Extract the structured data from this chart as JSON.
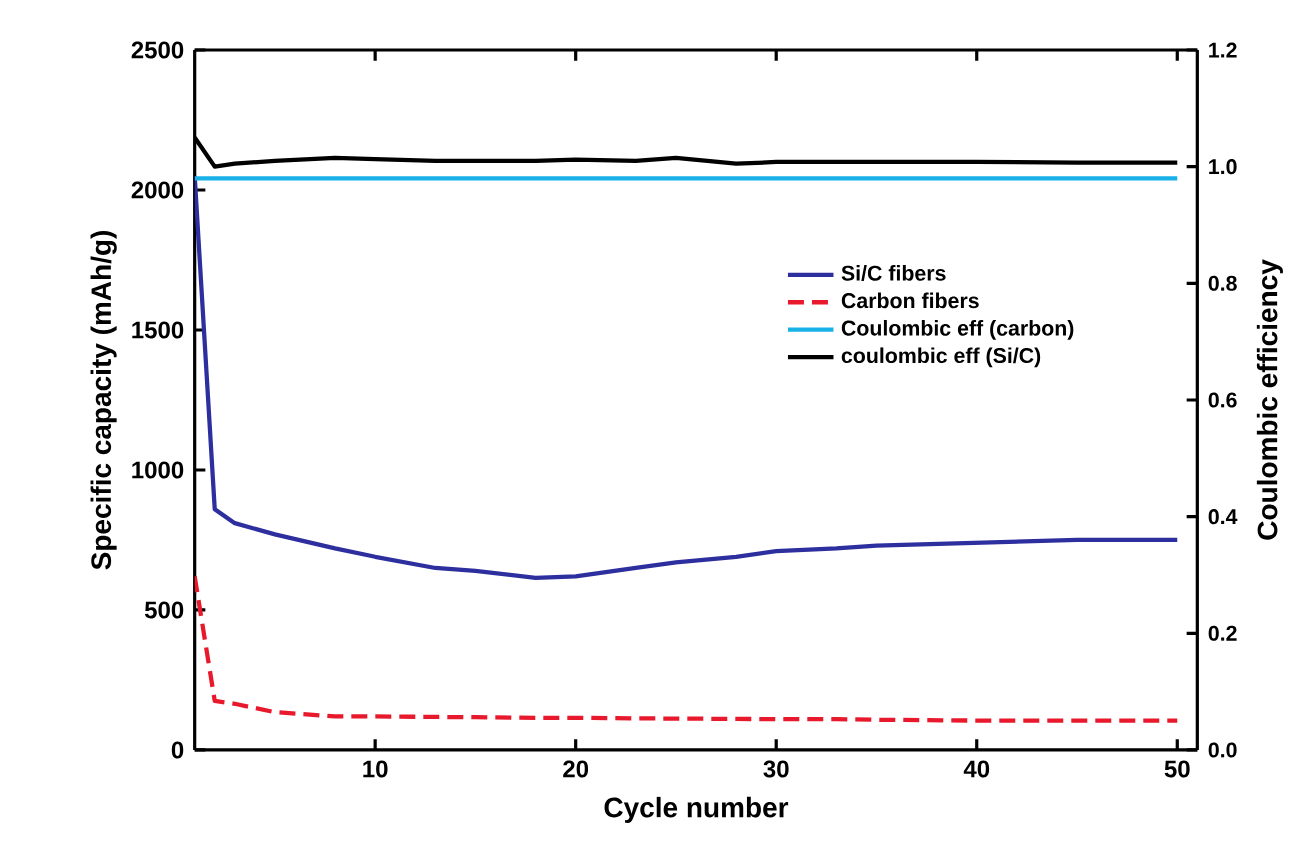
{
  "chart_data": {
    "type": "line",
    "xlabel": "Cycle number",
    "ylabel": "Specific capacity (mAh/g)",
    "y2label": "Coulombic efficiency",
    "x": [
      1,
      2,
      3,
      5,
      8,
      10,
      13,
      15,
      18,
      20,
      23,
      25,
      28,
      30,
      33,
      35,
      40,
      45,
      50
    ],
    "series": [
      {
        "name": "Si/C fibers",
        "color": "#2e2f9e",
        "values": [
          2050,
          860,
          810,
          770,
          720,
          690,
          650,
          640,
          615,
          620,
          650,
          670,
          690,
          710,
          720,
          730,
          740,
          750,
          750
        ]
      },
      {
        "name": "Carbon fibers",
        "color": "#e8192c",
        "line_style": "dashed",
        "values": [
          620,
          175,
          165,
          135,
          120,
          120,
          118,
          117,
          115,
          115,
          113,
          112,
          111,
          110,
          110,
          108,
          105,
          105,
          105
        ]
      },
      {
        "name": "Coulombic eff (carbon)",
        "color": "#1ab0e8",
        "axis": "y2",
        "values": [
          0.98,
          0.98,
          0.98,
          0.98,
          0.98,
          0.98,
          0.98,
          0.98,
          0.98,
          0.98,
          0.98,
          0.98,
          0.98,
          0.98,
          0.98,
          0.98,
          0.98,
          0.98,
          0.98
        ]
      },
      {
        "name": "coulombic eff (Si/C)",
        "color": "#000000",
        "axis": "y2",
        "values": [
          1.05,
          1.0,
          1.005,
          1.01,
          1.015,
          1.013,
          1.01,
          1.01,
          1.01,
          1.012,
          1.01,
          1.015,
          1.005,
          1.008,
          1.008,
          1.008,
          1.008,
          1.007,
          1.007
        ]
      }
    ],
    "xlim": [
      1,
      51
    ],
    "xticks": [
      10,
      20,
      30,
      40,
      50
    ],
    "ylim": [
      0,
      2500
    ],
    "yticks": [
      0,
      500,
      1000,
      1500,
      2000,
      2500
    ],
    "y2lim": [
      0,
      1.2
    ],
    "y2ticks": [
      {
        "value": 0,
        "label": "0.0"
      },
      {
        "value": 0.2,
        "label": "0.2"
      },
      {
        "value": 0.4,
        "label": "0.4"
      },
      {
        "value": 0.6,
        "label": "0.6"
      },
      {
        "value": 0.8,
        "label": "0.8"
      },
      {
        "value": 1.0,
        "label": "1.0"
      },
      {
        "value": 1.2,
        "label": "1.2"
      }
    ],
    "legend": "right",
    "grid": false,
    "marker": "none"
  }
}
